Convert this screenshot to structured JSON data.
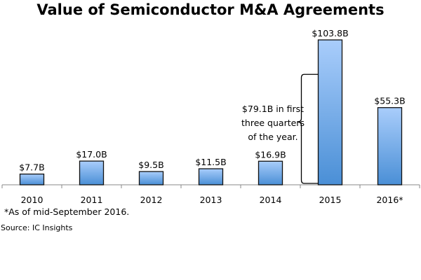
{
  "chart_data": {
    "type": "bar",
    "title": "Value of Semiconductor M&A Agreements",
    "categories": [
      "2010",
      "2011",
      "2012",
      "2013",
      "2014",
      "2015",
      "2016*"
    ],
    "values": [
      7.7,
      17.0,
      9.5,
      11.5,
      16.9,
      103.8,
      55.3
    ],
    "data_labels": [
      "$7.7B",
      "$17.0B",
      "$9.5B",
      "$11.5B",
      "$16.9B",
      "$103.8B",
      "$55.3B"
    ],
    "xlabel": "",
    "ylabel": "",
    "ylim": [
      0,
      104
    ],
    "grid": false,
    "bar_color_top": "#a9cdfb",
    "bar_color_bottom": "#4a8fd6",
    "annotation": {
      "category": "2015",
      "value": 79.1,
      "lines": [
        "$79.1B in first",
        "three quarters",
        "of the year."
      ]
    },
    "footnote": "*As of mid-September 2016.",
    "source": "Source: IC Insights"
  }
}
